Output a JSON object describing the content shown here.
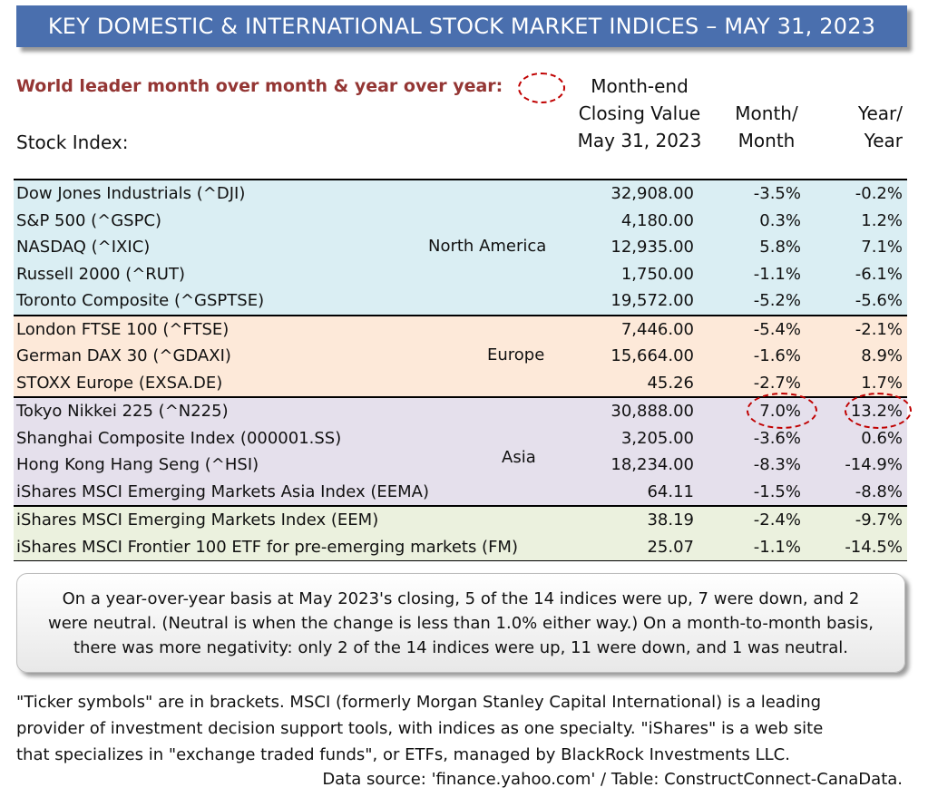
{
  "title": "KEY DOMESTIC & INTERNATIONAL STOCK MARKET INDICES – MAY 31, 2023",
  "subtitle": "World leader month over month & year over year:",
  "headers": {
    "stock_index": "Stock Index:",
    "closing_line1": "Month-end",
    "closing_line2": "Closing Value",
    "closing_line3": "May 31, 2023",
    "mom_line1": "Month/",
    "mom_line2": "Month",
    "yoy_line1": "Year/",
    "yoy_line2": "Year"
  },
  "groups": [
    {
      "region": "North America",
      "color": "#daeef3",
      "rows": [
        {
          "name": "Dow Jones Industrials (^DJI)",
          "close": "32,908.00",
          "mom": "-3.5%",
          "yoy": "-0.2%"
        },
        {
          "name": "S&P 500 (^GSPC)",
          "close": "4,180.00",
          "mom": "0.3%",
          "yoy": "1.2%"
        },
        {
          "name": "NASDAQ (^IXIC)",
          "close": "12,935.00",
          "mom": "5.8%",
          "yoy": "7.1%"
        },
        {
          "name": "Russell  2000 (^RUT)",
          "close": "1,750.00",
          "mom": "-1.1%",
          "yoy": "-6.1%"
        },
        {
          "name": "Toronto Composite (^GSPTSE)",
          "close": "19,572.00",
          "mom": "-5.2%",
          "yoy": "-5.6%"
        }
      ]
    },
    {
      "region": "Europe",
      "color": "#fde9d9",
      "rows": [
        {
          "name": "London FTSE 100 (^FTSE)",
          "close": "7,446.00",
          "mom": "-5.4%",
          "yoy": "-2.1%"
        },
        {
          "name": "German DAX 30 (^GDAXI)",
          "close": "15,664.00",
          "mom": "-1.6%",
          "yoy": "8.9%"
        },
        {
          "name": "STOXX Europe (EXSA.DE)",
          "close": "45.26",
          "mom": "-2.7%",
          "yoy": "1.7%"
        }
      ]
    },
    {
      "region": "Asia",
      "color": "#e5e0ec",
      "rows": [
        {
          "name": "Tokyo Nikkei 225 (^N225)",
          "close": "30,888.00",
          "mom": "7.0%",
          "yoy": "13.2%",
          "leader_mom": true,
          "leader_yoy": true
        },
        {
          "name": "Shanghai Composite Index (000001.SS)",
          "close": "3,205.00",
          "mom": "-3.6%",
          "yoy": "0.6%"
        },
        {
          "name": "Hong Kong Hang Seng (^HSI)",
          "close": "18,234.00",
          "mom": "-8.3%",
          "yoy": "-14.9%"
        },
        {
          "name": "iShares MSCI Emerging Markets Asia Index (EEMA)",
          "close": "64.11",
          "mom": "-1.5%",
          "yoy": "-8.8%"
        }
      ]
    },
    {
      "region": "",
      "color": "#ebf1de",
      "rows": [
        {
          "name": "iShares MSCI Emerging Markets Index (EEM)",
          "close": "38.19",
          "mom": "-2.4%",
          "yoy": "-9.7%"
        },
        {
          "name": "iShares MSCI Frontier 100 ETF for pre-emerging markets (FM)",
          "close": "25.07",
          "mom": "-1.1%",
          "yoy": "-14.5%"
        }
      ]
    }
  ],
  "summary": "On a year-over-year basis at May 2023's closing, 5 of the 14 indices were up, 7 were down, and 2 were neutral. (Neutral is when the change is less than 1.0% either way.) On a month-to-month basis, there was more negativity: only 2 of the 14 indices were up, 11 were down, and 1 was neutral.",
  "footnote": "\"Ticker symbols\" are in brackets. MSCI (formerly Morgan Stanley Capital International) is a leading provider of investment decision support tools, with indices as one specialty. \"iShares\" is a web site that specializes in \"exchange traded funds\", or ETFs, managed by BlackRock Investments LLC.",
  "source": "Data source: 'finance.yahoo.com' / Table: ConstructConnect-CanaData."
}
